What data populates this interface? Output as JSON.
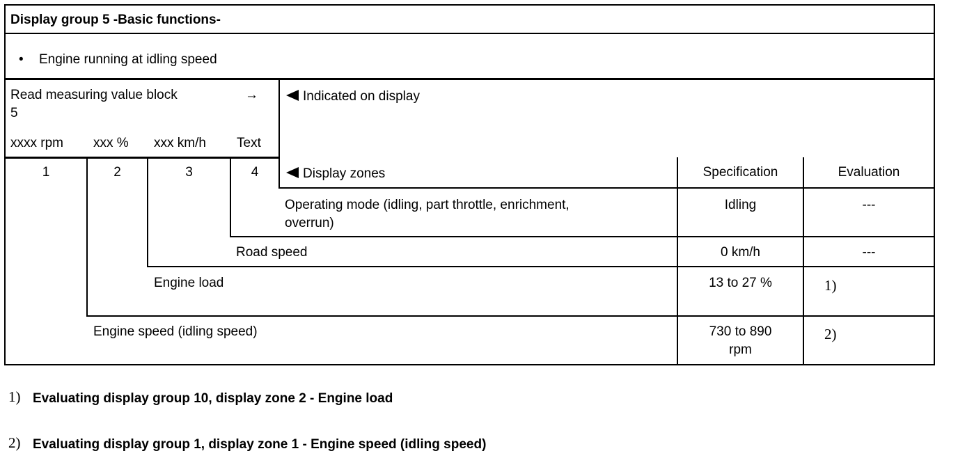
{
  "title": "Display group 5 -Basic functions-",
  "condition": {
    "bullet": "•",
    "text": "Engine running at idling speed"
  },
  "read_block": {
    "label": "Read measuring value block",
    "arrow": "→",
    "block_number": "5"
  },
  "units": [
    "xxxx rpm",
    "xxx %",
    "xxx km/h",
    "Text"
  ],
  "zone_numbers": [
    "1",
    "2",
    "3",
    "4"
  ],
  "indicated_on_display": "Indicated on display",
  "display_zones": "Display zones",
  "headers": {
    "specification": "Specification",
    "evaluation": "Evaluation"
  },
  "rows": [
    {
      "label": "Operating mode (idling, part throttle, enrichment,",
      "label2": "overrun)",
      "spec": "Idling",
      "evaluation": "---"
    },
    {
      "label": "Road speed",
      "spec": "0 km/h",
      "evaluation": "---"
    },
    {
      "label": "Engine load",
      "spec": "13 to 27 %",
      "evaluation": "1)"
    },
    {
      "label": "Engine speed (idling speed)",
      "spec": "730 to 890",
      "spec2": "rpm",
      "evaluation": "2)"
    }
  ],
  "footnotes": [
    {
      "marker": "1)",
      "text": "Evaluating display group 10, display zone 2 - Engine load"
    },
    {
      "marker": "2)",
      "text": "Evaluating display group 1, display zone 1 - Engine speed (idling speed)"
    }
  ]
}
